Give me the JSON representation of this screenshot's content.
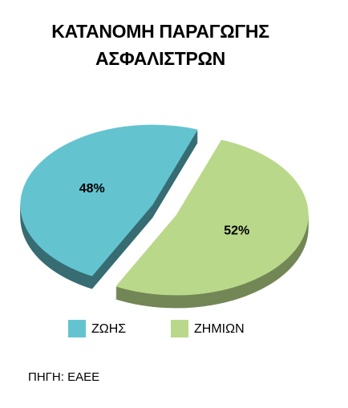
{
  "chart_data": {
    "type": "pie",
    "title": "ΚΑΤΑΝΟΜΗ ΠΑΡΑΓΩΓΗΣ ΑΣΦΑΛΙΣΤΡΩΝ",
    "categories": [
      "ΖΩΗΣ",
      "ΖΗΜΙΩΝ"
    ],
    "values": [
      48,
      52
    ],
    "value_labels": [
      "48%",
      "52%"
    ],
    "colors": [
      "#63c4d0",
      "#b9d88a"
    ],
    "legend": "bottom",
    "source": "ΠΗΓΗ: ΕΑΕΕ"
  }
}
